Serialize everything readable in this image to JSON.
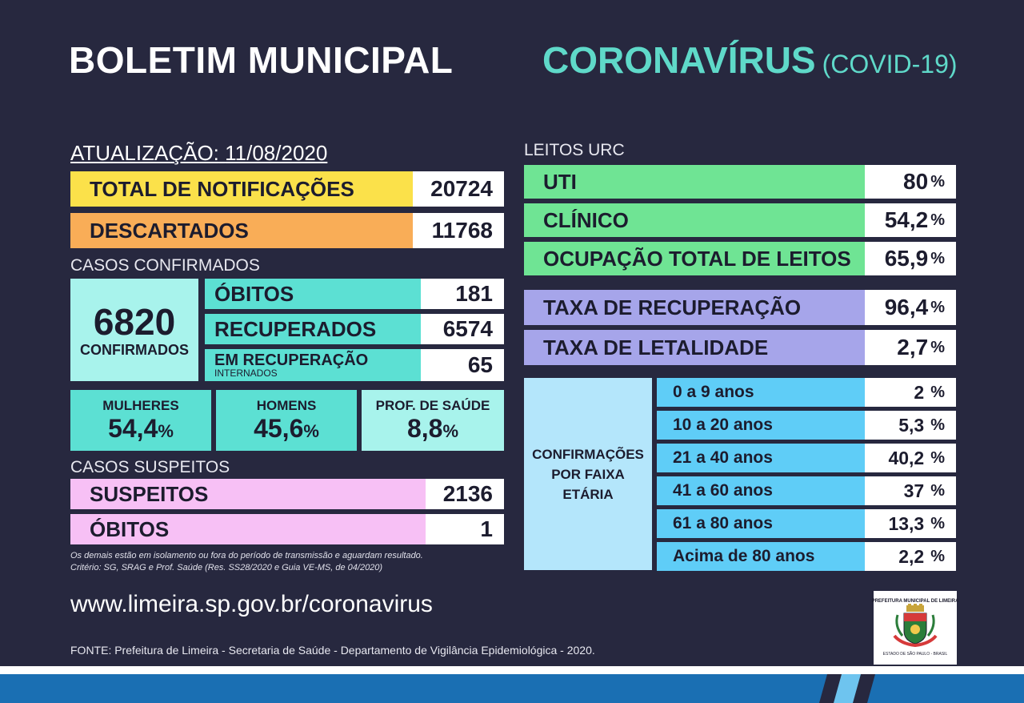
{
  "header": {
    "title_left": "BOLETIM MUNICIPAL",
    "title_right": "CORONAVÍRUS",
    "title_right_sub": "(COVID-19)"
  },
  "update": {
    "label": "ATUALIZAÇÃO:",
    "date": "11/08/2020"
  },
  "totals": {
    "notificacoes_label": "TOTAL DE NOTIFICAÇÕES",
    "notificacoes_value": "20724",
    "descartados_label": "DESCARTADOS",
    "descartados_value": "11768"
  },
  "confirmed": {
    "section_label": "CASOS CONFIRMADOS",
    "total_value": "6820",
    "total_label": "CONFIRMADOS",
    "obitos_label": "ÓBITOS",
    "obitos_value": "181",
    "recuperados_label": "RECUPERADOS",
    "recuperados_value": "6574",
    "em_recuperacao_label": "EM RECUPERAÇÃO",
    "em_recuperacao_sub": "INTERNADOS",
    "em_recuperacao_value": "65"
  },
  "demographics": {
    "mulheres_label": "MULHERES",
    "mulheres_value": "54,4",
    "homens_label": "HOMENS",
    "homens_value": "45,6",
    "prof_label": "PROF. DE SAÚDE",
    "prof_value": "8,8",
    "pct": "%"
  },
  "suspects": {
    "section_label": "CASOS SUSPEITOS",
    "suspeitos_label": "SUSPEITOS",
    "suspeitos_value": "2136",
    "obitos_label": "ÓBITOS",
    "obitos_value": "1",
    "note1": "Os demais estão em isolamento ou fora do período de transmissão e aguardam resultado.",
    "note2": "Critério: SG, SRAG e Prof. Saúde (Res. SS28/2020 e Guia VE-MS, de 04/2020)"
  },
  "beds": {
    "section_label": "LEITOS URC",
    "uti_label": "UTI",
    "uti_value": "80",
    "clinico_label": "CLÍNICO",
    "clinico_value": "54,2",
    "total_label": "OCUPAÇÃO TOTAL DE LEITOS",
    "total_value": "65,9",
    "pct": "%"
  },
  "rates": {
    "recuperacao_label": "TAXA DE RECUPERAÇÃO",
    "recuperacao_value": "96,4",
    "letalidade_label": "TAXA DE LETALIDADE",
    "letalidade_value": "2,7",
    "pct": "%"
  },
  "ages": {
    "box_label_1": "CONFIRMAÇÕES",
    "box_label_2": "POR FAIXA",
    "box_label_3": "ETÁRIA",
    "pct": "%",
    "rows": [
      {
        "label": "0 a 9 anos",
        "value": "2"
      },
      {
        "label": "10 a 20 anos",
        "value": "5,3"
      },
      {
        "label": "21 a 40 anos",
        "value": "40,2"
      },
      {
        "label": "41 a 60 anos",
        "value": "37"
      },
      {
        "label": "61 a 80 anos",
        "value": "13,3"
      },
      {
        "label": "Acima de 80 anos",
        "value": "2,2"
      }
    ]
  },
  "footer": {
    "url": "www.limeira.sp.gov.br/coronavirus",
    "source": "FONTE: Prefeitura de Limeira - Secretaria de Saúde - Departamento de Vigilância Epidemiológica - 2020.",
    "logo_top": "PREFEITURA MUNICIPAL DE LIMEIRA",
    "logo_bottom": "ESTADO DE SÃO PAULO - BRASIL"
  },
  "colors": {
    "background": "#27283f",
    "yellow": "#fbe14a",
    "orange": "#f9ad57",
    "teal": "#5ce0d3",
    "light_teal": "#a8f3ec",
    "pink": "#f7c0f5",
    "green": "#6fe494",
    "lavender": "#a6a5ea",
    "sky": "#5fcdf7",
    "light_sky": "#b4e6fb"
  }
}
